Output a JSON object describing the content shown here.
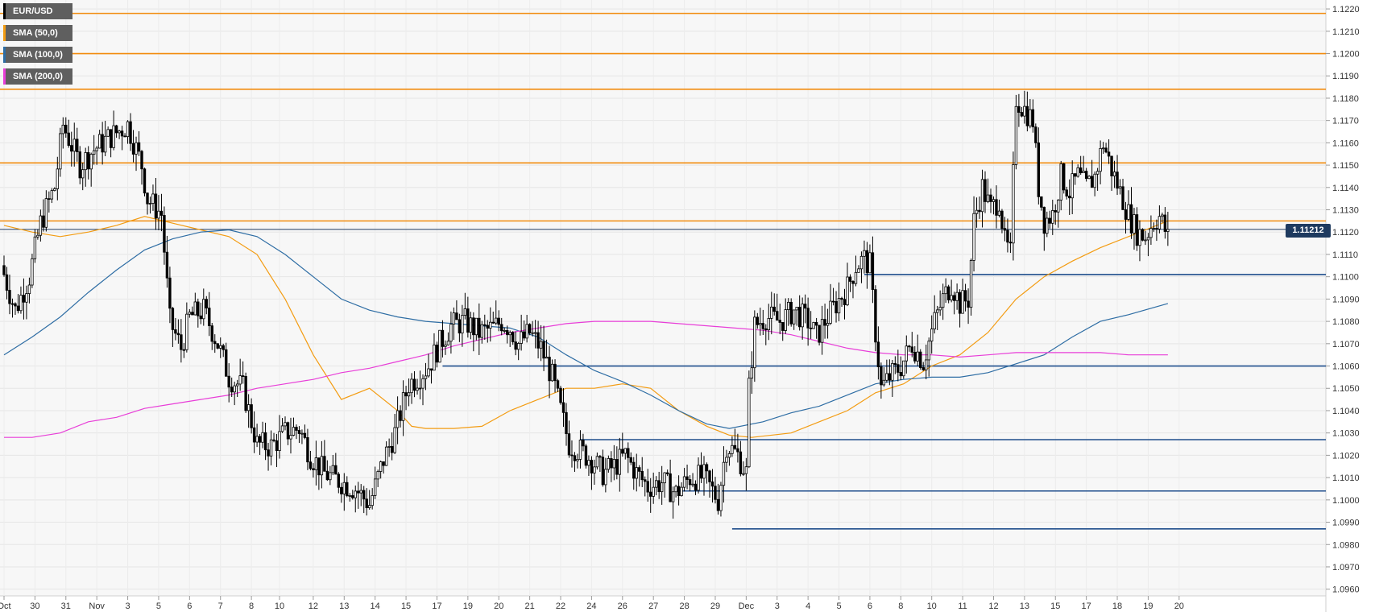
{
  "chart_data": {
    "type": "candlestick",
    "symbol": "EUR/USD",
    "current_price": "1.11212",
    "ylim": [
      1.0957,
      1.1224
    ],
    "y_ticks": [
      "1.0960",
      "1.0970",
      "1.0980",
      "1.0990",
      "1.1000",
      "1.1010",
      "1.1020",
      "1.1030",
      "1.1040",
      "1.1050",
      "1.1060",
      "1.1070",
      "1.1080",
      "1.1090",
      "1.1100",
      "1.1110",
      "1.1120",
      "1.1130",
      "1.1140",
      "1.1150",
      "1.1160",
      "1.1170",
      "1.1180",
      "1.1190",
      "1.1200",
      "1.1210",
      "1.1220"
    ],
    "x_ticks": [
      {
        "label": "Oct",
        "i": 0
      },
      {
        "label": "30",
        "i": 11
      },
      {
        "label": "31",
        "i": 22
      },
      {
        "label": "Nov",
        "i": 33
      },
      {
        "label": "3",
        "i": 44
      },
      {
        "label": "5",
        "i": 55
      },
      {
        "label": "6",
        "i": 66
      },
      {
        "label": "7",
        "i": 77
      },
      {
        "label": "8",
        "i": 88
      },
      {
        "label": "10",
        "i": 98
      },
      {
        "label": "12",
        "i": 110
      },
      {
        "label": "13",
        "i": 121
      },
      {
        "label": "14",
        "i": 132
      },
      {
        "label": "15",
        "i": 143
      },
      {
        "label": "17",
        "i": 154
      },
      {
        "label": "19",
        "i": 165
      },
      {
        "label": "20",
        "i": 176
      },
      {
        "label": "21",
        "i": 187
      },
      {
        "label": "22",
        "i": 198
      },
      {
        "label": "24",
        "i": 209
      },
      {
        "label": "26",
        "i": 220
      },
      {
        "label": "27",
        "i": 231
      },
      {
        "label": "28",
        "i": 242
      },
      {
        "label": "29",
        "i": 253
      },
      {
        "label": "Dec",
        "i": 264
      },
      {
        "label": "3",
        "i": 275
      },
      {
        "label": "4",
        "i": 286
      },
      {
        "label": "5",
        "i": 297
      },
      {
        "label": "6",
        "i": 308
      },
      {
        "label": "8",
        "i": 319
      },
      {
        "label": "10",
        "i": 330
      },
      {
        "label": "11",
        "i": 341
      },
      {
        "label": "12",
        "i": 352
      },
      {
        "label": "13",
        "i": 363
      },
      {
        "label": "15",
        "i": 374
      },
      {
        "label": "17",
        "i": 385
      },
      {
        "label": "18",
        "i": 396
      },
      {
        "label": "19",
        "i": 407
      },
      {
        "label": "20",
        "i": 418
      }
    ],
    "resistance_levels": [
      1.1218,
      1.12,
      1.1184,
      1.1151,
      1.1125
    ],
    "support_levels": [
      {
        "value": 1.1101,
        "from_i": 306
      },
      {
        "value": 1.106,
        "from_i": 156
      },
      {
        "value": 1.1027,
        "from_i": 205
      },
      {
        "value": 1.1004,
        "from_i": 239
      },
      {
        "value": 1.0987,
        "from_i": 259
      }
    ],
    "anchors": [
      [
        0,
        1.1105
      ],
      [
        5,
        1.1085
      ],
      [
        10,
        1.11
      ],
      [
        14,
        1.1124
      ],
      [
        19,
        1.114
      ],
      [
        22,
        1.1168
      ],
      [
        28,
        1.115
      ],
      [
        33,
        1.1157
      ],
      [
        38,
        1.1162
      ],
      [
        45,
        1.1168
      ],
      [
        50,
        1.115
      ],
      [
        52,
        1.1135
      ],
      [
        57,
        1.1128
      ],
      [
        60,
        1.108
      ],
      [
        64,
        1.1068
      ],
      [
        67,
        1.1082
      ],
      [
        72,
        1.1085
      ],
      [
        77,
        1.107
      ],
      [
        81,
        1.1055
      ],
      [
        86,
        1.105
      ],
      [
        91,
        1.1025
      ],
      [
        96,
        1.1024
      ],
      [
        101,
        1.103
      ],
      [
        106,
        1.1032
      ],
      [
        110,
        1.102
      ],
      [
        115,
        1.1012
      ],
      [
        121,
        1.1008
      ],
      [
        126,
        1.1005
      ],
      [
        131,
        1.0998
      ],
      [
        136,
        1.1018
      ],
      [
        140,
        1.103
      ],
      [
        145,
        1.1052
      ],
      [
        149,
        1.1056
      ],
      [
        152,
        1.106
      ],
      [
        156,
        1.107
      ],
      [
        160,
        1.1078
      ],
      [
        165,
        1.108
      ],
      [
        170,
        1.1075
      ],
      [
        175,
        1.1077
      ],
      [
        178,
        1.108
      ],
      [
        181,
        1.1077
      ],
      [
        184,
        1.107
      ],
      [
        188,
        1.1075
      ],
      [
        192,
        1.1068
      ],
      [
        196,
        1.1055
      ],
      [
        198,
        1.1045
      ],
      [
        202,
        1.1025
      ],
      [
        206,
        1.1022
      ],
      [
        210,
        1.1018
      ],
      [
        214,
        1.1012
      ],
      [
        218,
        1.1015
      ],
      [
        222,
        1.102
      ],
      [
        226,
        1.1012
      ],
      [
        230,
        1.1006
      ],
      [
        235,
        1.1008
      ],
      [
        240,
        1.1003
      ],
      [
        245,
        1.101
      ],
      [
        250,
        1.101
      ],
      [
        255,
        1.1
      ],
      [
        258,
        1.1025
      ],
      [
        262,
        1.102
      ],
      [
        265,
        1.1012
      ],
      [
        266,
        1.105
      ],
      [
        268,
        1.1078
      ],
      [
        272,
        1.1082
      ],
      [
        277,
        1.108
      ],
      [
        282,
        1.1085
      ],
      [
        287,
        1.108
      ],
      [
        290,
        1.1073
      ],
      [
        293,
        1.108
      ],
      [
        297,
        1.1088
      ],
      [
        301,
        1.1095
      ],
      [
        304,
        1.1105
      ],
      [
        307,
        1.1108
      ],
      [
        309,
        1.1105
      ],
      [
        311,
        1.1075
      ],
      [
        313,
        1.105
      ],
      [
        316,
        1.1055
      ],
      [
        320,
        1.106
      ],
      [
        324,
        1.107
      ],
      [
        328,
        1.1062
      ],
      [
        332,
        1.108
      ],
      [
        335,
        1.109
      ],
      [
        338,
        1.1097
      ],
      [
        341,
        1.1088
      ],
      [
        344,
        1.109
      ],
      [
        346,
        1.1125
      ],
      [
        349,
        1.114
      ],
      [
        352,
        1.113
      ],
      [
        355,
        1.1135
      ],
      [
        357,
        1.1115
      ],
      [
        359,
        1.111
      ],
      [
        361,
        1.118
      ],
      [
        364,
        1.1175
      ],
      [
        367,
        1.117
      ],
      [
        369,
        1.114
      ],
      [
        371,
        1.1125
      ],
      [
        374,
        1.1128
      ],
      [
        377,
        1.1145
      ],
      [
        380,
        1.1138
      ],
      [
        383,
        1.1145
      ],
      [
        386,
        1.114
      ],
      [
        389,
        1.1145
      ],
      [
        392,
        1.116
      ],
      [
        395,
        1.1148
      ],
      [
        398,
        1.1138
      ],
      [
        401,
        1.1128
      ],
      [
        404,
        1.112
      ],
      [
        407,
        1.1118
      ],
      [
        410,
        1.1125
      ],
      [
        412,
        1.1127
      ],
      [
        414,
        1.1121
      ]
    ],
    "sma50": [
      [
        0,
        1.1123
      ],
      [
        10,
        1.112
      ],
      [
        20,
        1.1118
      ],
      [
        30,
        1.112
      ],
      [
        40,
        1.1123
      ],
      [
        50,
        1.1127
      ],
      [
        60,
        1.1124
      ],
      [
        70,
        1.1121
      ],
      [
        80,
        1.1118
      ],
      [
        90,
        1.111
      ],
      [
        100,
        1.109
      ],
      [
        110,
        1.1065
      ],
      [
        120,
        1.1045
      ],
      [
        130,
        1.105
      ],
      [
        140,
        1.104
      ],
      [
        145,
        1.1033
      ],
      [
        150,
        1.1032
      ],
      [
        160,
        1.1032
      ],
      [
        170,
        1.1033
      ],
      [
        180,
        1.104
      ],
      [
        190,
        1.1045
      ],
      [
        200,
        1.105
      ],
      [
        210,
        1.105
      ],
      [
        220,
        1.1052
      ],
      [
        230,
        1.105
      ],
      [
        240,
        1.104
      ],
      [
        250,
        1.1033
      ],
      [
        258,
        1.1029
      ],
      [
        266,
        1.1028
      ],
      [
        280,
        1.103
      ],
      [
        290,
        1.1035
      ],
      [
        300,
        1.104
      ],
      [
        310,
        1.1048
      ],
      [
        320,
        1.1052
      ],
      [
        330,
        1.106
      ],
      [
        340,
        1.1065
      ],
      [
        350,
        1.1075
      ],
      [
        360,
        1.109
      ],
      [
        370,
        1.11
      ],
      [
        380,
        1.1107
      ],
      [
        390,
        1.1113
      ],
      [
        400,
        1.1118
      ],
      [
        414,
        1.1125
      ]
    ],
    "sma100": [
      [
        0,
        1.1065
      ],
      [
        10,
        1.1073
      ],
      [
        20,
        1.1082
      ],
      [
        30,
        1.1093
      ],
      [
        40,
        1.1103
      ],
      [
        50,
        1.1112
      ],
      [
        60,
        1.1117
      ],
      [
        70,
        1.112
      ],
      [
        80,
        1.1121
      ],
      [
        90,
        1.1118
      ],
      [
        100,
        1.111
      ],
      [
        110,
        1.11
      ],
      [
        120,
        1.109
      ],
      [
        130,
        1.1085
      ],
      [
        140,
        1.1082
      ],
      [
        150,
        1.108
      ],
      [
        160,
        1.1079
      ],
      [
        170,
        1.1078
      ],
      [
        180,
        1.1077
      ],
      [
        190,
        1.1073
      ],
      [
        200,
        1.1065
      ],
      [
        210,
        1.1058
      ],
      [
        220,
        1.1053
      ],
      [
        230,
        1.1047
      ],
      [
        240,
        1.104
      ],
      [
        250,
        1.1034
      ],
      [
        258,
        1.1032
      ],
      [
        270,
        1.1035
      ],
      [
        280,
        1.1039
      ],
      [
        290,
        1.1042
      ],
      [
        300,
        1.1047
      ],
      [
        310,
        1.1052
      ],
      [
        320,
        1.1054
      ],
      [
        330,
        1.1055
      ],
      [
        340,
        1.1055
      ],
      [
        350,
        1.1057
      ],
      [
        360,
        1.1061
      ],
      [
        370,
        1.1065
      ],
      [
        380,
        1.1073
      ],
      [
        390,
        1.108
      ],
      [
        400,
        1.1083
      ],
      [
        414,
        1.1088
      ]
    ],
    "sma200": [
      [
        0,
        1.1028
      ],
      [
        10,
        1.1028
      ],
      [
        20,
        1.103
      ],
      [
        30,
        1.1035
      ],
      [
        40,
        1.1037
      ],
      [
        50,
        1.1041
      ],
      [
        60,
        1.1043
      ],
      [
        70,
        1.1045
      ],
      [
        80,
        1.1047
      ],
      [
        90,
        1.105
      ],
      [
        100,
        1.1052
      ],
      [
        110,
        1.1054
      ],
      [
        120,
        1.1057
      ],
      [
        130,
        1.1059
      ],
      [
        140,
        1.1062
      ],
      [
        150,
        1.1065
      ],
      [
        160,
        1.1069
      ],
      [
        170,
        1.1072
      ],
      [
        180,
        1.1075
      ],
      [
        190,
        1.1077
      ],
      [
        200,
        1.1079
      ],
      [
        210,
        1.108
      ],
      [
        220,
        1.108
      ],
      [
        230,
        1.108
      ],
      [
        240,
        1.1079
      ],
      [
        250,
        1.1078
      ],
      [
        260,
        1.1077
      ],
      [
        270,
        1.1076
      ],
      [
        280,
        1.1074
      ],
      [
        290,
        1.1071
      ],
      [
        300,
        1.1068
      ],
      [
        310,
        1.1066
      ],
      [
        320,
        1.1065
      ],
      [
        330,
        1.1065
      ],
      [
        340,
        1.1064
      ],
      [
        350,
        1.1065
      ],
      [
        360,
        1.1066
      ],
      [
        370,
        1.1066
      ],
      [
        380,
        1.1066
      ],
      [
        390,
        1.1066
      ],
      [
        400,
        1.1065
      ],
      [
        414,
        1.1065
      ]
    ]
  },
  "legend": [
    {
      "label": "EUR/USD",
      "color": "#000000"
    },
    {
      "label": "SMA (50,0)",
      "color": "#f39c12"
    },
    {
      "label": "SMA (100,0)",
      "color": "#2e6da4"
    },
    {
      "label": "SMA (200,0)",
      "color": "#e83ed8"
    }
  ],
  "colors": {
    "background": "#f7f7f7",
    "resistance": "#f28c0f",
    "support": "#1f4e8c",
    "sma50": "#f39c12",
    "sma100": "#2e6da4",
    "sma200": "#e83ed8",
    "price_line": "#1e3a5f"
  }
}
